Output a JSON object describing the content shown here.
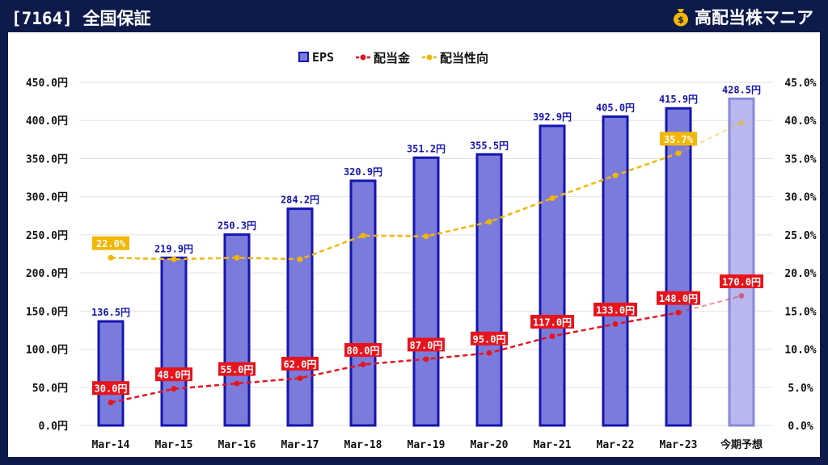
{
  "header": {
    "title": "[7164] 全国保証",
    "brand": "高配当株マニア",
    "brand_icon": "money-bag-icon"
  },
  "colors": {
    "header_bg": "#0d1a4a",
    "bar_fill": "#7b7bdc",
    "bar_stroke": "#1515b0",
    "forecast_fill": "#b8b8ee",
    "forecast_stroke": "#8888dd",
    "dividend": "#e8141c",
    "payout": "#f2b705",
    "eps_label": "#1515b0"
  },
  "chart_data": {
    "type": "bar",
    "categories": [
      "Mar-14",
      "Mar-15",
      "Mar-16",
      "Mar-17",
      "Mar-18",
      "Mar-19",
      "Mar-20",
      "Mar-21",
      "Mar-22",
      "Mar-23",
      "今期予想"
    ],
    "series": [
      {
        "name": "EPS",
        "type": "bar",
        "axis": "left",
        "values": [
          136.5,
          219.9,
          250.3,
          284.2,
          320.9,
          351.2,
          355.5,
          392.9,
          405.0,
          415.9,
          428.5
        ],
        "labels": [
          "136.5円",
          "219.9円",
          "250.3円",
          "284.2円",
          "320.9円",
          "351.2円",
          "355.5円",
          "392.9円",
          "405.0円",
          "415.9円",
          "428.5円"
        ]
      },
      {
        "name": "配当金",
        "type": "line",
        "axis": "left",
        "values": [
          30.0,
          48.0,
          55.0,
          62.0,
          80.0,
          87.0,
          95.0,
          117.0,
          133.0,
          148.0,
          170.0
        ],
        "labels": [
          "30.0円",
          "48.0円",
          "55.0円",
          "62.0円",
          "80.0円",
          "87.0円",
          "95.0円",
          "117.0円",
          "133.0円",
          "148.0円",
          "170.0円"
        ]
      },
      {
        "name": "配当性向",
        "type": "line",
        "axis": "right",
        "values": [
          22.0,
          21.8,
          22.0,
          21.8,
          24.9,
          24.8,
          26.7,
          29.8,
          32.8,
          35.7,
          39.7
        ],
        "labels": [
          "22.0%",
          "",
          "",
          "",
          "",
          "",
          "",
          "",
          "",
          "35.7%",
          ""
        ]
      }
    ],
    "y_left": {
      "min": 0,
      "max": 450,
      "ticks": [
        "0.0円",
        "50.0円",
        "100.0円",
        "150.0円",
        "200.0円",
        "250.0円",
        "300.0円",
        "350.0円",
        "400.0円",
        "450.0円"
      ]
    },
    "y_right": {
      "min": 0,
      "max": 45,
      "ticks": [
        "0.0%",
        "5.0%",
        "10.0%",
        "15.0%",
        "20.0%",
        "25.0%",
        "30.0%",
        "35.0%",
        "40.0%",
        "45.0%"
      ]
    },
    "forecast_index": 10,
    "legend_position": "top-center",
    "grid": true
  }
}
